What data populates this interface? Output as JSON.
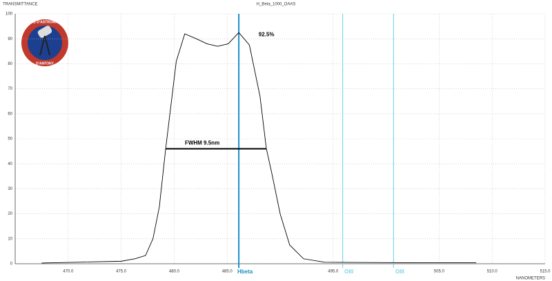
{
  "chart_data": {
    "type": "line",
    "title": "H_Beta_1000_OAAS",
    "y_label": "TRANSMITTANCE",
    "x_label": "NANOMETERS",
    "logo_text": [
      "CLUB D'ASTRONOMIE",
      "D'ANTONY"
    ],
    "xlim": [
      465,
      515
    ],
    "xticks": [
      {
        "value": 470,
        "label": "470.0"
      },
      {
        "value": 475,
        "label": "475.0"
      },
      {
        "value": 480,
        "label": "480.0"
      },
      {
        "value": 485,
        "label": "485.0"
      },
      {
        "value": 495,
        "label": "495.0"
      },
      {
        "value": 505,
        "label": "505.0"
      },
      {
        "value": 510,
        "label": "510.0"
      },
      {
        "value": 515,
        "label": "515.0"
      }
    ],
    "ylim": [
      0,
      100
    ],
    "yticks": [
      0,
      10,
      20,
      30,
      40,
      50,
      60,
      70,
      80,
      90,
      100
    ],
    "grid": true,
    "series": [
      {
        "name": "H_Beta_1000_OAAS",
        "color": "#000000",
        "x": [
          467.5,
          475,
          476.3,
          477.3,
          478.0,
          478.6,
          479.2,
          479.8,
          480.2,
          481.0,
          482.1,
          483.1,
          484.1,
          485.1,
          486.1,
          487.1,
          488.1,
          488.7,
          489.2,
          490.0,
          490.9,
          492.2,
          494.2,
          502.7,
          508.5
        ],
        "values": [
          0.3,
          1,
          2,
          3.3,
          10,
          22.7,
          46,
          67,
          81,
          92,
          90,
          88,
          87,
          88,
          92.5,
          87.5,
          67,
          46,
          36.5,
          20,
          7.5,
          2,
          0.6,
          0.4,
          0.4
        ]
      }
    ],
    "reference_lines": [
      {
        "name": "Hbeta",
        "x": 486.1,
        "color": "#1a8fc9"
      },
      {
        "name": "OIII",
        "x": 495.9,
        "color": "#7fd6e8"
      },
      {
        "name": "OIII",
        "x": 500.7,
        "color": "#7fd6e8"
      }
    ],
    "peak_annotation": {
      "text": "92.5%",
      "x": 486.1,
      "y": 92.5
    },
    "fwhm": {
      "text": "FWHM 9.5nm",
      "y": 46,
      "x": [
        479.2,
        488.7
      ]
    }
  }
}
